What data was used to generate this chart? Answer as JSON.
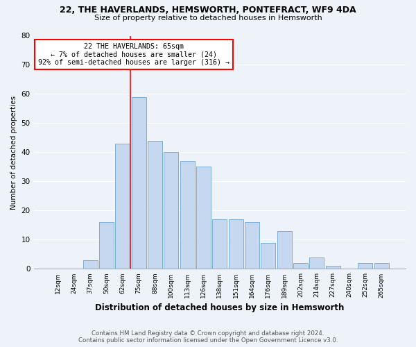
{
  "title": "22, THE HAVERLANDS, HEMSWORTH, PONTEFRACT, WF9 4DA",
  "subtitle": "Size of property relative to detached houses in Hemsworth",
  "xlabel": "Distribution of detached houses by size in Hemsworth",
  "ylabel": "Number of detached properties",
  "categories": [
    "12sqm",
    "24sqm",
    "37sqm",
    "50sqm",
    "62sqm",
    "75sqm",
    "88sqm",
    "100sqm",
    "113sqm",
    "126sqm",
    "138sqm",
    "151sqm",
    "164sqm",
    "176sqm",
    "189sqm",
    "202sqm",
    "214sqm",
    "227sqm",
    "240sqm",
    "252sqm",
    "265sqm"
  ],
  "values": [
    0,
    0,
    3,
    16,
    43,
    59,
    44,
    40,
    37,
    35,
    17,
    17,
    16,
    9,
    13,
    2,
    4,
    1,
    0,
    2,
    2
  ],
  "bar_color": "#c5d8f0",
  "bar_edge_color": "#7bafd4",
  "annotation_text_line1": "22 THE HAVERLANDS: 65sqm",
  "annotation_text_line2": "← 7% of detached houses are smaller (24)",
  "annotation_text_line3": "92% of semi-detached houses are larger (316) →",
  "annotation_box_color": "white",
  "annotation_box_edge_color": "red",
  "vline_color": "red",
  "vline_x_index": 4,
  "ylim": [
    0,
    80
  ],
  "yticks": [
    0,
    10,
    20,
    30,
    40,
    50,
    60,
    70,
    80
  ],
  "background_color": "#eef3f9",
  "grid_color": "white",
  "footer_line1": "Contains HM Land Registry data © Crown copyright and database right 2024.",
  "footer_line2": "Contains public sector information licensed under the Open Government Licence v3.0."
}
